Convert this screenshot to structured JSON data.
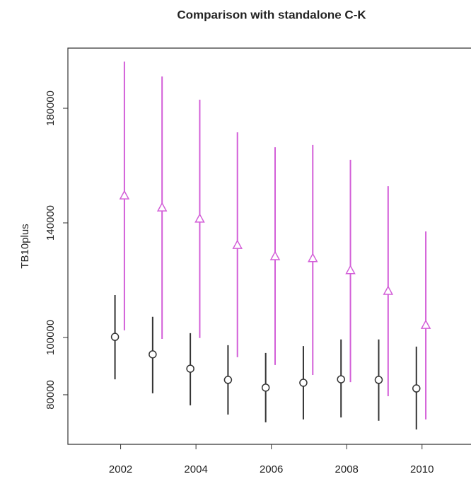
{
  "chart_data": {
    "type": "errorbar",
    "title": "Comparison with standalone C-K",
    "y_label": "TB10plus",
    "xlim": [
      2000.6,
      2011.3
    ],
    "xticks": [
      2002,
      2004,
      2006,
      2008,
      2010
    ],
    "ylim": [
      62700,
      201000
    ],
    "yticks": [
      80000,
      100000,
      140000,
      180000
    ],
    "series": [
      {
        "marker": "circle",
        "color": "#333333",
        "x": [
          2001.85,
          2002.85,
          2003.85,
          2004.85,
          2005.85,
          2006.85,
          2007.85,
          2008.85,
          2009.85
        ],
        "values": [
          100200,
          94100,
          89100,
          85200,
          82500,
          84200,
          85400,
          85200,
          82200
        ],
        "low": [
          85400,
          80500,
          76300,
          73100,
          70400,
          71400,
          72100,
          70900,
          67900
        ],
        "high": [
          114800,
          107200,
          101500,
          97300,
          94600,
          97000,
          99300,
          99300,
          96800
        ]
      },
      {
        "marker": "triangle",
        "color": "#d35fd8",
        "x": [
          2002.1,
          2003.1,
          2004.1,
          2005.1,
          2006.1,
          2007.1,
          2008.1,
          2009.1,
          2010.1
        ],
        "values": [
          149600,
          145400,
          141500,
          132300,
          128400,
          127700,
          123500,
          116300,
          104400
        ],
        "low": [
          102500,
          99500,
          99800,
          93100,
          90400,
          86900,
          84400,
          79500,
          71400
        ],
        "high": [
          196300,
          191100,
          183000,
          171600,
          166400,
          167200,
          162000,
          152800,
          137000
        ]
      }
    ]
  }
}
